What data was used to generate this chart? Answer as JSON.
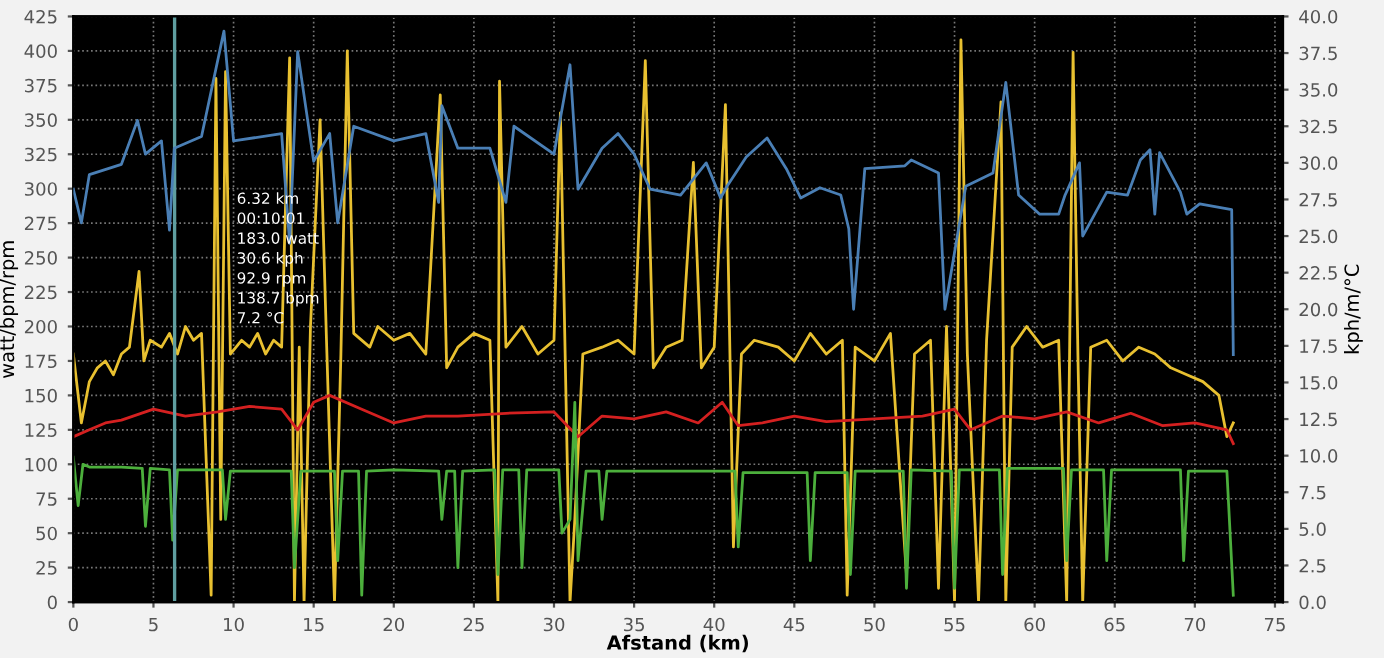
{
  "chart_data": {
    "type": "line",
    "xlabel": "Afstand (km)",
    "ylabel": "watt/bpm/rpm",
    "y2label": "kph/m/°C",
    "xlim": [
      0,
      75.5
    ],
    "xticks": [
      0,
      5,
      10,
      15,
      20,
      25,
      30,
      35,
      40,
      45,
      50,
      55,
      60,
      65,
      70,
      75
    ],
    "ylim": [
      0,
      425
    ],
    "yticks": [
      0,
      25,
      50,
      75,
      100,
      125,
      150,
      175,
      200,
      225,
      250,
      275,
      300,
      325,
      350,
      375,
      400,
      425
    ],
    "y2lim": [
      0,
      40
    ],
    "y2ticks": [
      {
        "value": 0,
        "label": "0.0"
      },
      {
        "value": 2.5,
        "label": "2.5"
      },
      {
        "value": 5,
        "label": "5.0"
      },
      {
        "value": 7.5,
        "label": "7.5"
      },
      {
        "value": 10,
        "label": "10.0"
      },
      {
        "value": 12.5,
        "label": "12.5"
      },
      {
        "value": 15,
        "label": "15.0"
      },
      {
        "value": 17.5,
        "label": "17.5"
      },
      {
        "value": 20,
        "label": "20.0"
      },
      {
        "value": 22.5,
        "label": "22.5"
      },
      {
        "value": 25,
        "label": "25.0"
      },
      {
        "value": 27.5,
        "label": "27.5"
      },
      {
        "value": 30,
        "label": "30.0"
      },
      {
        "value": 32.5,
        "label": "32.5"
      },
      {
        "value": 35,
        "label": "35.0"
      },
      {
        "value": 37.5,
        "label": "37.5"
      },
      {
        "value": 40,
        "label": "40.0"
      }
    ],
    "grid": true,
    "line_style": "solid",
    "annotations": [
      "6.32 km",
      "00:10:01",
      "183.0 watt",
      "30.6 kph",
      "92.9 rpm",
      "138.7 bpm",
      "7.2 °C"
    ],
    "ref_lines": [
      {
        "axis": "x",
        "value": 6.32,
        "color": "#5f9ea0"
      }
    ],
    "series": [
      {
        "color": "#e8c030",
        "x": [
          0,
          0.5,
          1,
          1.5,
          2,
          2.5,
          3,
          3.5,
          4.1,
          4.4,
          4.8,
          5.5,
          6,
          6.5,
          7,
          7.5,
          8,
          8.6,
          8.9,
          9.2,
          9.5,
          9.8,
          10.5,
          11,
          11.5,
          12,
          12.5,
          13,
          13.5,
          13.8,
          14.1,
          14.4,
          14.8,
          15.4,
          15.8,
          16.3,
          16.7,
          17.1,
          17.5,
          18.5,
          19,
          20,
          21,
          22,
          22.9,
          23.3,
          24,
          25,
          26,
          26.5,
          26.6,
          27,
          28,
          29,
          30,
          30.4,
          31,
          31.3,
          31.8,
          33,
          34,
          35,
          35.7,
          36.2,
          37,
          38,
          38.7,
          39.2,
          40,
          40.7,
          41.2,
          41.7,
          42.5,
          44,
          45,
          46,
          47,
          48,
          48.3,
          48.8,
          50,
          51,
          52,
          52.5,
          53.5,
          54,
          54.5,
          55,
          55.4,
          55.8,
          56.5,
          57,
          57.9,
          58.2,
          58.6,
          59.5,
          60.5,
          61.5,
          62,
          62.4,
          62.7,
          63,
          63.5,
          64.5,
          65.5,
          66.5,
          67.5,
          68.5,
          69.5,
          70.5,
          71.5,
          72,
          72.4
        ],
        "values": [
          180,
          130,
          160,
          170,
          175,
          165,
          180,
          185,
          240,
          175,
          190,
          185,
          195,
          180,
          200,
          190,
          195,
          5,
          380,
          60,
          385,
          180,
          190,
          185,
          195,
          180,
          190,
          185,
          395,
          0,
          185,
          0,
          200,
          350,
          190,
          0,
          180,
          400,
          195,
          185,
          200,
          190,
          195,
          180,
          368,
          170,
          185,
          195,
          190,
          0,
          378,
          185,
          200,
          180,
          190,
          355,
          0,
          60,
          180,
          185,
          190,
          180,
          393,
          170,
          185,
          190,
          319,
          170,
          185,
          361,
          40,
          180,
          190,
          185,
          175,
          195,
          180,
          190,
          5,
          185,
          175,
          195,
          20,
          180,
          190,
          10,
          200,
          0,
          408,
          180,
          0,
          190,
          363,
          0,
          185,
          200,
          185,
          190,
          0,
          399,
          180,
          0,
          185,
          190,
          175,
          185,
          180,
          170,
          165,
          160,
          150,
          120,
          130
        ]
      },
      {
        "color": "#d42020",
        "x": [
          0,
          1,
          2,
          3,
          5,
          7,
          9,
          11,
          13,
          14,
          15,
          16,
          18,
          20,
          22,
          24,
          27,
          30,
          31.5,
          33,
          35,
          37,
          39,
          40.5,
          41.5,
          43,
          45,
          47,
          50,
          53,
          55,
          56,
          58,
          60,
          62,
          64,
          66,
          68,
          70,
          72,
          72.4
        ],
        "values": [
          120,
          125,
          130,
          132,
          140,
          135,
          138,
          142,
          140,
          125,
          145,
          150,
          140,
          130,
          135,
          135,
          137,
          138,
          120,
          135,
          133,
          138,
          130,
          145,
          128,
          130,
          135,
          131,
          133,
          135,
          140,
          125,
          135,
          133,
          138,
          130,
          137,
          128,
          130,
          125,
          115
        ]
      },
      {
        "color": "#4caf3c",
        "x": [
          0,
          0.3,
          0.6,
          1,
          3,
          4.3,
          4.5,
          4.8,
          6,
          6.2,
          6.5,
          9.3,
          9.5,
          9.8,
          13.6,
          13.8,
          14.2,
          16.3,
          16.5,
          16.8,
          17.8,
          18,
          18.3,
          20,
          22.8,
          23,
          23.3,
          23.8,
          24,
          24.3,
          26.3,
          26.5,
          26.8,
          27.8,
          28,
          28.3,
          30.3,
          30.5,
          31,
          31.3,
          31.5,
          32,
          32.8,
          33,
          33.3,
          37,
          41.3,
          41.5,
          41.8,
          45.8,
          46,
          46.3,
          48.3,
          48.5,
          48.8,
          51.8,
          52,
          52.3,
          54.8,
          55,
          55.3,
          57.8,
          58,
          58.3,
          61.8,
          62,
          62.3,
          64.3,
          64.5,
          64.8,
          69.1,
          69.3,
          69.6,
          72,
          72.4
        ],
        "values": [
          105,
          70,
          100,
          98,
          98,
          97,
          55,
          97,
          96,
          45,
          96,
          96,
          60,
          95,
          95,
          25,
          95,
          95,
          30,
          95,
          95,
          5,
          95,
          96,
          95,
          60,
          95,
          95,
          25,
          95,
          96,
          20,
          96,
          96,
          25,
          96,
          96,
          50,
          60,
          145,
          30,
          95,
          95,
          60,
          95,
          95,
          95,
          40,
          94,
          94,
          30,
          94,
          94,
          20,
          95,
          95,
          10,
          96,
          95,
          10,
          96,
          96,
          20,
          97,
          97,
          30,
          96,
          96,
          30,
          96,
          96,
          30,
          95,
          95,
          5
        ]
      },
      {
        "color": "#4a7fb5",
        "axis": "y2",
        "x": [
          0,
          0.5,
          1,
          3,
          4,
          4.5,
          5.5,
          6,
          6.3,
          8,
          9.4,
          10,
          13,
          13.5,
          14,
          15,
          16,
          16.5,
          17.5,
          20,
          22,
          22.8,
          23,
          24,
          26,
          27,
          27.5,
          30,
          31,
          31.5,
          33,
          34,
          35,
          36,
          37.9,
          39.5,
          40.4,
          40.8,
          42,
          43.3,
          44.5,
          45.4,
          46.6,
          47.9,
          48.4,
          48.7,
          49.4,
          51.9,
          52.3,
          54,
          54.4,
          55.7,
          57.4,
          58.2,
          59,
          60.3,
          61.5,
          61.9,
          62.8,
          63,
          64.5,
          65.8,
          66.6,
          67.2,
          67.5,
          67.8,
          69.1,
          69.5,
          70.3,
          72.3,
          72.4
        ],
        "values": [
          28.2,
          25.9,
          29.2,
          29.9,
          32.9,
          30.6,
          31.5,
          25.4,
          31,
          31.8,
          39,
          31.5,
          32,
          24.5,
          37.6,
          30.1,
          32,
          25.9,
          32.5,
          31.5,
          32,
          27.3,
          33.9,
          31,
          31,
          27.3,
          32.5,
          30.6,
          36.7,
          28.2,
          31,
          32,
          30.6,
          28.2,
          27.8,
          30,
          27.6,
          28.4,
          30.4,
          31.7,
          29.6,
          27.6,
          28.3,
          27.8,
          25.5,
          20,
          29.6,
          29.8,
          30.2,
          29.3,
          20,
          28.4,
          29.3,
          35.5,
          27.8,
          26.5,
          26.5,
          27.8,
          30,
          25,
          28,
          27.8,
          30.2,
          30.9,
          26.5,
          30.7,
          28,
          26.5,
          27.2,
          26.8,
          16.9
        ]
      }
    ]
  }
}
